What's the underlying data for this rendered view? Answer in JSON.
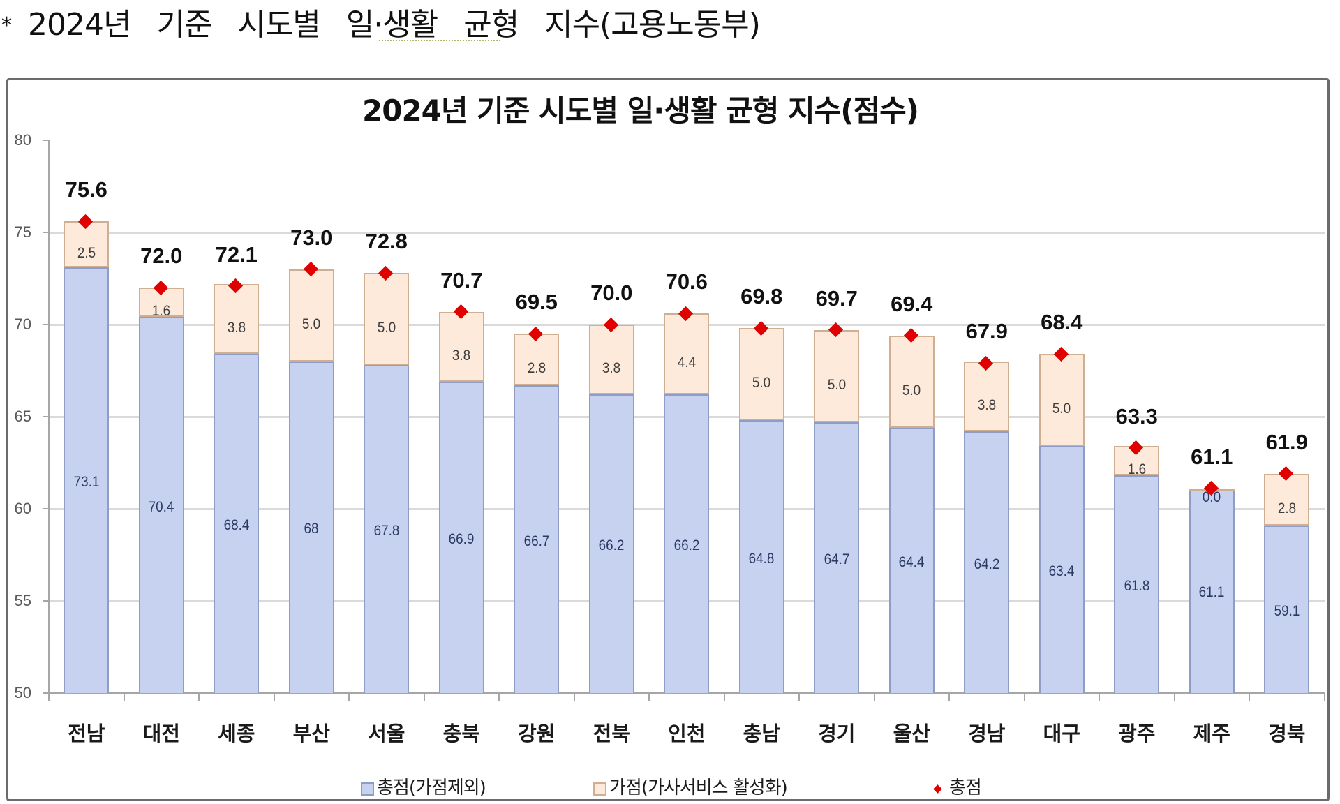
{
  "header": {
    "bullet": "*",
    "text": "2024년 기준 시도별 일·생활 균형 지수(고용노동부)"
  },
  "chart_data": {
    "type": "bar",
    "stacked": true,
    "title": "2024년 기준 시도별 일·생활 균형 지수(점수)",
    "xlabel": "",
    "ylabel": "",
    "ylim": [
      50,
      80
    ],
    "yticks": [
      50,
      55,
      60,
      65,
      70,
      75,
      80
    ],
    "grid": true,
    "legend_position": "bottom",
    "categories": [
      "전남",
      "대전",
      "세종",
      "부산",
      "서울",
      "충북",
      "강원",
      "전북",
      "인천",
      "충남",
      "경기",
      "울산",
      "경남",
      "대구",
      "광주",
      "제주",
      "경북"
    ],
    "series": [
      {
        "name": "총점(가점제외)",
        "type": "bar",
        "color": "#C6D2F0",
        "border_color": "#8F9DC6",
        "label_color": "#2B3A63",
        "values": [
          73.1,
          70.4,
          68.4,
          68,
          67.8,
          66.9,
          66.7,
          66.2,
          66.2,
          64.8,
          64.7,
          64.4,
          64.2,
          63.4,
          61.8,
          61.1,
          59.1
        ],
        "labels": [
          "73.1",
          "70.4",
          "68.4",
          "68",
          "67.8",
          "66.9",
          "66.7",
          "66.2",
          "66.2",
          "64.8",
          "64.7",
          "64.4",
          "64.2",
          "63.4",
          "61.8",
          "61.1",
          "59.1"
        ]
      },
      {
        "name": "가점(가사서비스 활성화)",
        "type": "bar",
        "color": "#FDEADA",
        "border_color": "#CFAE91",
        "label_color": "#3D3D3D",
        "values": [
          2.5,
          1.6,
          3.8,
          5.0,
          5.0,
          3.8,
          2.8,
          3.8,
          4.4,
          5.0,
          5.0,
          5.0,
          3.8,
          5.0,
          1.6,
          0.0,
          2.8
        ],
        "labels": [
          "2.5",
          "1.6",
          "3.8",
          "5.0",
          "5.0",
          "3.8",
          "2.8",
          "3.8",
          "4.4",
          "5.0",
          "5.0",
          "5.0",
          "3.8",
          "5.0",
          "1.6",
          "0.0",
          "2.8"
        ]
      },
      {
        "name": "총점",
        "type": "scatter",
        "marker": "diamond",
        "color": "#E00000",
        "values": [
          75.6,
          72.0,
          72.1,
          73.0,
          72.8,
          70.7,
          69.5,
          70.0,
          70.6,
          69.8,
          69.7,
          69.4,
          67.9,
          68.4,
          63.3,
          61.1,
          61.9
        ],
        "labels": [
          "75.6",
          "72.0",
          "72.1",
          "73.0",
          "72.8",
          "70.7",
          "69.5",
          "70.0",
          "70.6",
          "69.8",
          "69.7",
          "69.4",
          "67.9",
          "68.4",
          "63.3",
          "61.1",
          "61.9"
        ]
      }
    ]
  }
}
